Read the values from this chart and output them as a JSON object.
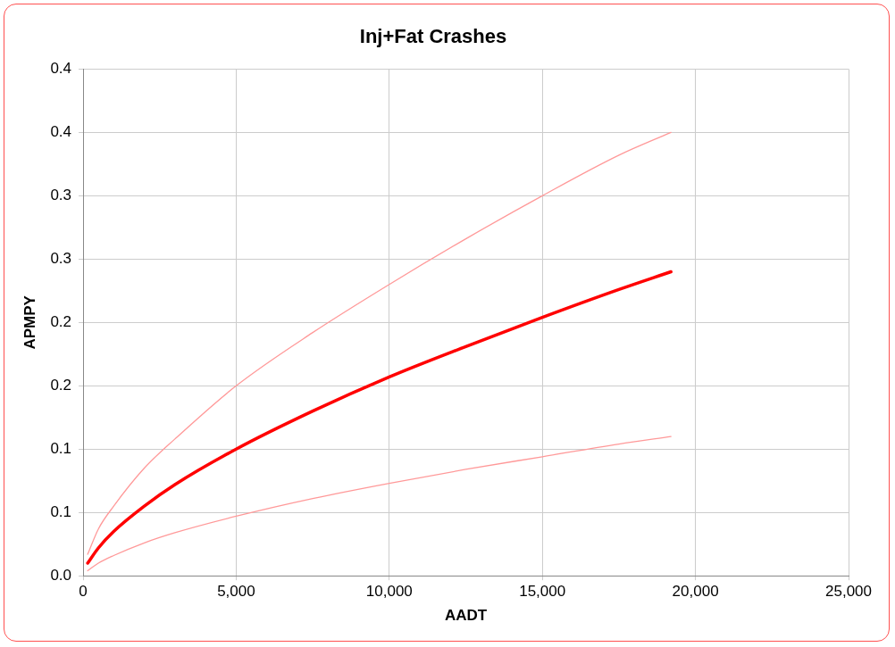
{
  "chart_data": {
    "type": "line",
    "title": "Inj+Fat Crashes",
    "xlabel": "AADT",
    "ylabel": "APMPY",
    "x": [
      150,
      500,
      1000,
      2000,
      3000,
      5000,
      7500,
      10000,
      12500,
      15000,
      17500,
      19200
    ],
    "series": [
      {
        "color": "#ff9999",
        "values": [
          0.017,
          0.037,
          0.055,
          0.085,
          0.108,
          0.15,
          0.192,
          0.23,
          0.266,
          0.3,
          0.332,
          0.35
        ]
      },
      {
        "color": "#ff0000",
        "values": [
          0.01,
          0.022,
          0.035,
          0.055,
          0.072,
          0.1,
          0.13,
          0.157,
          0.181,
          0.204,
          0.226,
          0.24
        ]
      },
      {
        "color": "#ff9999",
        "values": [
          0.004,
          0.01,
          0.016,
          0.026,
          0.034,
          0.047,
          0.061,
          0.073,
          0.084,
          0.094,
          0.104,
          0.11
        ]
      }
    ],
    "xlim": [
      0,
      25000
    ],
    "xticks": [
      0,
      {
        "value": 5000,
        "label": "5,000"
      },
      {
        "value": 10000,
        "label": "10,000"
      },
      {
        "value": 15000,
        "label": "15,000"
      },
      {
        "value": 20000,
        "label": "20,000"
      },
      {
        "value": 25000,
        "label": "25,000"
      }
    ],
    "ylim": [
      0,
      0.4
    ],
    "yticks": [
      {
        "value": 0,
        "label": "0.0"
      },
      {
        "value": 0.05,
        "label": "0.1"
      },
      {
        "value": 0.1,
        "label": "0.1"
      },
      {
        "value": 0.15,
        "label": "0.2"
      },
      {
        "value": 0.2,
        "label": "0.2"
      },
      {
        "value": 0.25,
        "label": "0.3"
      },
      {
        "value": 0.3,
        "label": "0.3"
      },
      {
        "value": 0.35,
        "label": "0.4"
      },
      {
        "value": 0.4,
        "label": "0.4"
      }
    ],
    "grid": true,
    "marker": "none",
    "line_style": "solid"
  }
}
